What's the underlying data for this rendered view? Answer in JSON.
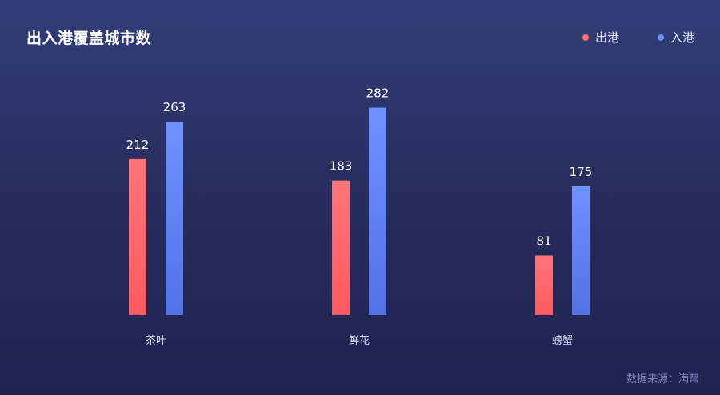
{
  "title": "出入港覆盖城市数",
  "legend": [
    {
      "label": "出港",
      "color": "#ff6b6e"
    },
    {
      "label": "入港",
      "color": "#6a8cff"
    }
  ],
  "source": "数据来源：满帮",
  "chart_data": {
    "type": "bar",
    "title": "出入港覆盖城市数",
    "categories": [
      "茶叶",
      "鲜花",
      "螃蟹"
    ],
    "series": [
      {
        "name": "出港",
        "values": [
          212,
          183,
          81
        ],
        "color": "#ff6b6e"
      },
      {
        "name": "入港",
        "values": [
          263,
          282,
          175
        ],
        "color": "#6a8cff"
      }
    ],
    "grid": false,
    "legend_position": "top-right",
    "ylim": [
      0,
      300
    ]
  }
}
